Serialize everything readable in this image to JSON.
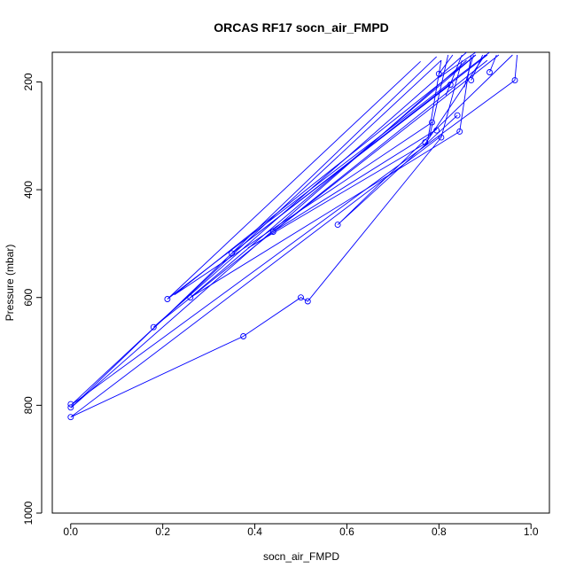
{
  "chart_data": {
    "type": "line",
    "title": "ORCAS RF17 socn_air_FMPD",
    "xlabel": "socn_air_FMPD",
    "ylabel": "Pressure (mbar)",
    "xlim": [
      -0.04,
      1.04
    ],
    "ylim": [
      1000,
      145
    ],
    "y_reversed": true,
    "xticks": [
      0.0,
      0.2,
      0.4,
      0.6,
      0.8,
      1.0
    ],
    "xtick_labels": [
      "0.0",
      "0.2",
      "0.4",
      "0.6",
      "0.8",
      "1.0"
    ],
    "yticks": [
      200,
      400,
      600,
      800,
      1000
    ],
    "ytick_labels": [
      "200",
      "400",
      "600",
      "800",
      "1000"
    ],
    "grid": false,
    "legend": "none",
    "line_color": "#0000ff",
    "marker": "open-circle",
    "segments": [
      [
        [
          0.805,
          160
        ],
        [
          0.775,
          312
        ],
        [
          0.385,
          508
        ]
      ],
      [
        [
          0.805,
          160
        ],
        [
          0.0,
          800
        ],
        [
          0.965,
          197
        ]
      ],
      [
        [
          0.86,
          160
        ],
        [
          0.0,
          805
        ],
        [
          0.795,
          153
        ]
      ],
      [
        [
          0.905,
          160
        ],
        [
          0.18,
          655
        ],
        [
          0.86,
          145
        ]
      ],
      [
        [
          0.85,
          160
        ],
        [
          0.805,
          303
        ],
        [
          0.515,
          607
        ],
        [
          0.5,
          600
        ],
        [
          0.375,
          672
        ],
        [
          0.0,
          822
        ],
        [
          0.805,
          300
        ]
      ],
      [
        [
          0.76,
          162
        ],
        [
          0.21,
          603
        ],
        [
          0.91,
          145
        ]
      ],
      [
        [
          0.88,
          150
        ],
        [
          0.26,
          600
        ],
        [
          0.845,
          292
        ],
        [
          0.87,
          150
        ]
      ],
      [
        [
          0.785,
          275
        ],
        [
          0.225,
          595
        ],
        [
          0.88,
          150
        ]
      ],
      [
        [
          0.825,
          205
        ],
        [
          0.35,
          518
        ],
        [
          0.905,
          150
        ]
      ],
      [
        [
          0.795,
          288
        ],
        [
          0.44,
          478
        ],
        [
          0.93,
          150
        ]
      ],
      [
        [
          0.84,
          262
        ],
        [
          0.58,
          465
        ],
        [
          0.96,
          150
        ]
      ],
      [
        [
          0.965,
          197
        ],
        [
          0.97,
          150
        ]
      ],
      [
        [
          0.91,
          182
        ],
        [
          0.925,
          150
        ]
      ],
      [
        [
          0.855,
          210
        ],
        [
          0.875,
          150
        ]
      ],
      [
        [
          0.815,
          225
        ],
        [
          0.85,
          150
        ]
      ],
      [
        [
          0.8,
          185
        ],
        [
          0.83,
          150
        ]
      ],
      [
        [
          0.87,
          197
        ],
        [
          0.895,
          150
        ]
      ],
      [
        [
          0.78,
          300
        ],
        [
          0.82,
          150
        ]
      ],
      [
        [
          0.8,
          192
        ],
        [
          0.88,
          145
        ]
      ],
      [
        [
          0.77,
          315
        ],
        [
          0.9,
          150
        ]
      ]
    ],
    "points": [
      [
        0.0,
        798
      ],
      [
        0.0,
        804
      ],
      [
        0.0,
        822
      ],
      [
        0.18,
        655
      ],
      [
        0.21,
        603
      ],
      [
        0.26,
        600
      ],
      [
        0.375,
        672
      ],
      [
        0.35,
        518
      ],
      [
        0.44,
        478
      ],
      [
        0.58,
        465
      ],
      [
        0.5,
        600
      ],
      [
        0.515,
        607
      ],
      [
        0.77,
        312
      ],
      [
        0.785,
        275
      ],
      [
        0.795,
        290
      ],
      [
        0.805,
        303
      ],
      [
        0.845,
        292
      ],
      [
        0.84,
        262
      ],
      [
        0.825,
        205
      ],
      [
        0.8,
        185
      ],
      [
        0.87,
        197
      ],
      [
        0.91,
        182
      ],
      [
        0.965,
        197
      ]
    ]
  }
}
